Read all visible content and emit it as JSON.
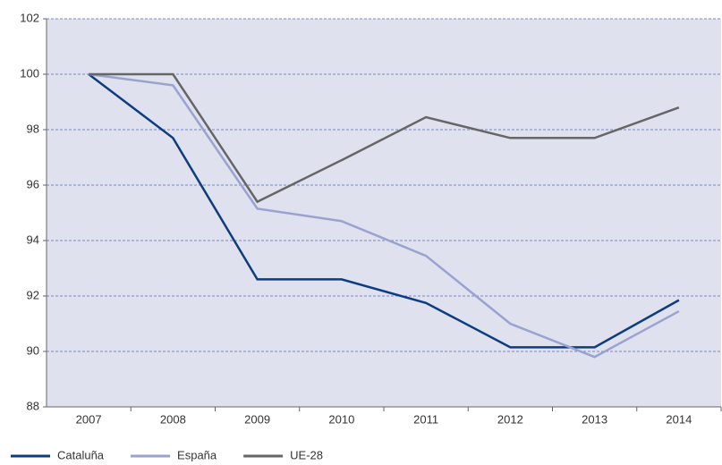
{
  "chart_data": {
    "type": "line",
    "categories": [
      "2007",
      "2008",
      "2009",
      "2010",
      "2011",
      "2012",
      "2013",
      "2014"
    ],
    "series": [
      {
        "name": "Cataluña",
        "color": "#0d3d80",
        "values": [
          100,
          97.7,
          92.6,
          92.6,
          91.75,
          90.15,
          90.15,
          91.85
        ]
      },
      {
        "name": "España",
        "color": "#9aa3cf",
        "values": [
          100,
          99.6,
          95.15,
          94.7,
          93.45,
          91.0,
          89.8,
          91.45
        ]
      },
      {
        "name": "UE-28",
        "color": "#666666",
        "values": [
          100,
          100,
          95.4,
          96.9,
          98.45,
          97.7,
          97.7,
          98.8
        ]
      }
    ],
    "ylim": [
      88,
      102
    ],
    "yticks": [
      88,
      90,
      92,
      94,
      96,
      98,
      100,
      102
    ],
    "grid": true,
    "legend": "bottom"
  }
}
